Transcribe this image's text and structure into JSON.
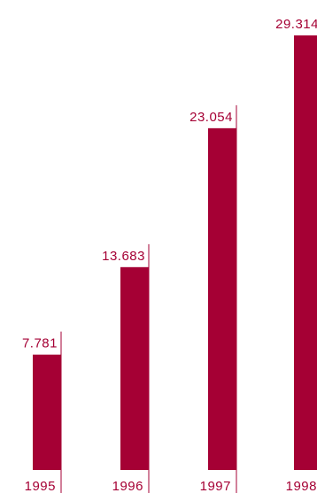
{
  "colors": {
    "bar": "#a50034",
    "text": "#a50034",
    "background": "#ffffff"
  },
  "chart_data": {
    "type": "bar",
    "title": "",
    "xlabel": "",
    "ylabel": "",
    "categories": [
      "1995",
      "1996",
      "1997",
      "1998"
    ],
    "values": [
      7.781,
      13.683,
      23.054,
      29.314
    ],
    "value_labels": [
      "7.781",
      "13.683",
      "23.054",
      "29.314"
    ],
    "ylim": [
      0,
      29.314
    ],
    "grid": false,
    "legend": "none"
  }
}
